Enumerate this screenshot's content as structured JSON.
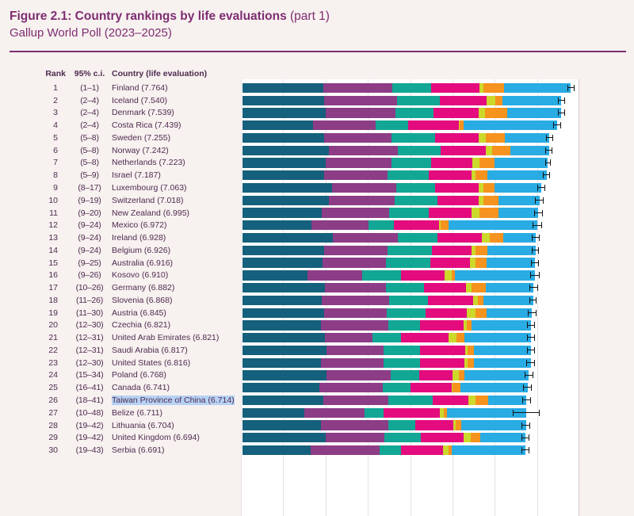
{
  "header": {
    "title_bold": "Figure 2.1: Country rankings by life evaluations",
    "title_light": " (part 1)",
    "subtitle": "Gallup World Poll (2023–2025)"
  },
  "table_header": {
    "rank": "Rank",
    "ci": "95% c.i.",
    "country": "Country (life evaluation)"
  },
  "colors": {
    "page_background": "#f7f1ef",
    "plot_background": "#ffffff",
    "accent_purple": "#7e2d72",
    "row_text": "#4e2b50",
    "gridline": "#e9e1e4",
    "axis_edge_line": "#d6c7d2",
    "errorbar": "#141414",
    "selection_highlight": "#b7d2f4"
  },
  "chart_data": {
    "type": "bar",
    "orientation": "horizontal-stacked",
    "title": "Country rankings by life evaluations (part 1)",
    "subtitle": "Gallup World Poll (2023–2025)",
    "xlim": [
      0,
      8
    ],
    "grid": true,
    "errorbars": "95% confidence interval",
    "segments_order": [
      "dark_teal",
      "purple",
      "teal_green",
      "magenta",
      "yellow_green",
      "orange",
      "light_blue"
    ],
    "segment_colors": {
      "dark_teal": "#15607c",
      "purple": "#8d3c86",
      "teal_green": "#12a794",
      "magenta": "#e30b7e",
      "yellow_green": "#ccd82a",
      "orange": "#f6921e",
      "light_blue": "#29abe3"
    },
    "rows": [
      {
        "rank": 1,
        "ci": "(1–1)",
        "country": "Finland",
        "score": "7.764",
        "values": [
          1.92,
          1.63,
          0.9,
          1.15,
          0.09,
          0.49,
          1.584
        ],
        "ci_half": 0.09,
        "highlighted": false
      },
      {
        "rank": 2,
        "ci": "(2–4)",
        "country": "Iceland",
        "score": "7.540",
        "values": [
          1.93,
          1.73,
          1.01,
          1.11,
          0.19,
          0.17,
          1.4
        ],
        "ci_half": 0.08,
        "highlighted": false
      },
      {
        "rank": 3,
        "ci": "(2–4)",
        "country": "Denmark",
        "score": "7.539",
        "values": [
          1.97,
          1.65,
          0.9,
          1.07,
          0.15,
          0.51,
          1.289
        ],
        "ci_half": 0.08,
        "highlighted": false
      },
      {
        "rank": 4,
        "ci": "(2–4)",
        "country": "Costa Rica",
        "score": "7.439",
        "values": [
          1.67,
          1.48,
          0.77,
          1.2,
          0.02,
          0.08,
          2.219
        ],
        "ci_half": 0.09,
        "highlighted": false
      },
      {
        "rank": 5,
        "ci": "(5–8)",
        "country": "Sweden",
        "score": "7.255",
        "values": [
          1.93,
          1.6,
          1.03,
          1.03,
          0.17,
          0.45,
          1.045
        ],
        "ci_half": 0.08,
        "highlighted": false
      },
      {
        "rank": 6,
        "ci": "(5–8)",
        "country": "Norway",
        "score": "7.242",
        "values": [
          2.05,
          1.63,
          1.0,
          1.07,
          0.15,
          0.43,
          0.912
        ],
        "ci_half": 0.08,
        "highlighted": false
      },
      {
        "rank": 7,
        "ci": "(5–8)",
        "country": "Netherlands",
        "score": "7.223",
        "values": [
          1.97,
          1.56,
          0.92,
          0.98,
          0.17,
          0.36,
          1.263
        ],
        "ci_half": 0.07,
        "highlighted": false
      },
      {
        "rank": 8,
        "ci": "(5–9)",
        "country": "Israel",
        "score": "7.187",
        "values": [
          1.93,
          1.5,
          0.98,
          1.01,
          0.09,
          0.28,
          1.397
        ],
        "ci_half": 0.08,
        "highlighted": false
      },
      {
        "rank": 9,
        "ci": "(8–17)",
        "country": "Luxembourg",
        "score": "7.063",
        "values": [
          2.12,
          1.52,
          0.92,
          1.02,
          0.12,
          0.26,
          1.103
        ],
        "ci_half": 0.1,
        "highlighted": false
      },
      {
        "rank": 10,
        "ci": "(9–19)",
        "country": "Switzerland",
        "score": "7.018",
        "values": [
          2.05,
          1.55,
          1.0,
          0.98,
          0.12,
          0.35,
          0.968
        ],
        "ci_half": 0.1,
        "highlighted": false
      },
      {
        "rank": 11,
        "ci": "(9–20)",
        "country": "New Zealand",
        "score": "6.995",
        "values": [
          1.88,
          1.58,
          0.94,
          1.02,
          0.18,
          0.45,
          0.945
        ],
        "ci_half": 0.1,
        "highlighted": false
      },
      {
        "rank": 12,
        "ci": "(9–24)",
        "country": "Mexico",
        "score": "6.972",
        "values": [
          1.63,
          1.35,
          0.6,
          1.07,
          0.03,
          0.19,
          2.102
        ],
        "ci_half": 0.11,
        "highlighted": false
      },
      {
        "rank": 13,
        "ci": "(9–24)",
        "country": "Ireland",
        "score": "6.928",
        "values": [
          2.14,
          1.54,
          0.92,
          1.05,
          0.19,
          0.32,
          0.768
        ],
        "ci_half": 0.09,
        "highlighted": false
      },
      {
        "rank": 14,
        "ci": "(9–24)",
        "country": "Belgium",
        "score": "6.926",
        "values": [
          1.93,
          1.5,
          1.05,
          0.94,
          0.09,
          0.28,
          1.136
        ],
        "ci_half": 0.09,
        "highlighted": false
      },
      {
        "rank": 15,
        "ci": "(9–25)",
        "country": "Australia",
        "score": "6.916",
        "values": [
          1.9,
          1.5,
          1.05,
          0.92,
          0.13,
          0.28,
          1.136
        ],
        "ci_half": 0.1,
        "highlighted": false
      },
      {
        "rank": 16,
        "ci": "(9–26)",
        "country": "Kosovo",
        "score": "6.910",
        "values": [
          1.54,
          1.28,
          0.92,
          1.03,
          0.17,
          0.08,
          1.89
        ],
        "ci_half": 0.11,
        "highlighted": false
      },
      {
        "rank": 17,
        "ci": "(10–26)",
        "country": "Germany",
        "score": "6.882",
        "values": [
          1.95,
          1.45,
          0.9,
          0.98,
          0.13,
          0.34,
          1.132
        ],
        "ci_half": 0.1,
        "highlighted": false
      },
      {
        "rank": 18,
        "ci": "(11–26)",
        "country": "Slovenia",
        "score": "6.868",
        "values": [
          1.88,
          1.58,
          0.92,
          1.07,
          0.11,
          0.13,
          1.178
        ],
        "ci_half": 0.09,
        "highlighted": false
      },
      {
        "rank": 19,
        "ci": "(11–30)",
        "country": "Austria",
        "score": "6.845",
        "values": [
          1.93,
          1.48,
          0.92,
          0.98,
          0.19,
          0.28,
          1.065
        ],
        "ci_half": 0.1,
        "highlighted": false
      },
      {
        "rank": 20,
        "ci": "(12–30)",
        "country": "Czechia",
        "score": "6.821",
        "values": [
          1.86,
          1.58,
          0.75,
          1.03,
          0.09,
          0.11,
          1.401
        ],
        "ci_half": 0.1,
        "highlighted": false
      },
      {
        "rank": 21,
        "ci": "(12–31)",
        "country": "United Arab Emirates",
        "score": "6.821",
        "values": [
          1.95,
          1.13,
          0.66,
          1.13,
          0.19,
          0.19,
          1.571
        ],
        "ci_half": 0.09,
        "highlighted": false
      },
      {
        "rank": 22,
        "ci": "(12–31)",
        "country": "Saudi Arabia",
        "score": "6.817",
        "values": [
          1.99,
          1.35,
          0.85,
          1.07,
          0.06,
          0.15,
          1.347
        ],
        "ci_half": 0.09,
        "highlighted": false
      },
      {
        "rank": 23,
        "ci": "(12–30)",
        "country": "United States",
        "score": "6.816",
        "values": [
          1.86,
          1.48,
          0.85,
          1.05,
          0.08,
          0.15,
          1.346
        ],
        "ci_half": 0.1,
        "highlighted": false
      },
      {
        "rank": 24,
        "ci": "(15–34)",
        "country": "Poland",
        "score": "6.768",
        "values": [
          1.99,
          1.52,
          0.66,
          0.79,
          0.15,
          0.13,
          1.528
        ],
        "ci_half": 0.1,
        "highlighted": false
      },
      {
        "rank": 25,
        "ci": "(16–41)",
        "country": "Canada",
        "score": "6.741",
        "values": [
          1.82,
          1.5,
          0.66,
          0.96,
          0.02,
          0.19,
          1.591
        ],
        "ci_half": 0.1,
        "highlighted": false
      },
      {
        "rank": 26,
        "ci": "(18–41)",
        "country": "Taiwan Province of China",
        "score": "6.714",
        "values": [
          1.92,
          1.52,
          1.05,
          0.85,
          0.17,
          0.3,
          0.904
        ],
        "ci_half": 0.1,
        "highlighted": true
      },
      {
        "rank": 27,
        "ci": "(10–48)",
        "country": "Belize",
        "score": "6.711",
        "values": [
          1.46,
          1.43,
          0.45,
          1.33,
          0.08,
          0.09,
          1.871
        ],
        "ci_half": 0.32,
        "highlighted": false
      },
      {
        "rank": 28,
        "ci": "(19–42)",
        "country": "Lithuania",
        "score": "6.704",
        "values": [
          1.86,
          1.58,
          0.64,
          0.9,
          0.06,
          0.13,
          1.534
        ],
        "ci_half": 0.1,
        "highlighted": false
      },
      {
        "rank": 29,
        "ci": "(19–42)",
        "country": "United Kingdom",
        "score": "6.694",
        "values": [
          1.97,
          1.39,
          0.86,
          1.0,
          0.17,
          0.24,
          1.064
        ],
        "ci_half": 0.09,
        "highlighted": false
      },
      {
        "rank": 30,
        "ci": "(19–43)",
        "country": "Serbia",
        "score": "6.691",
        "values": [
          1.62,
          1.63,
          0.49,
          1.0,
          0.13,
          0.08,
          1.741
        ],
        "ci_half": 0.1,
        "highlighted": false
      }
    ]
  }
}
